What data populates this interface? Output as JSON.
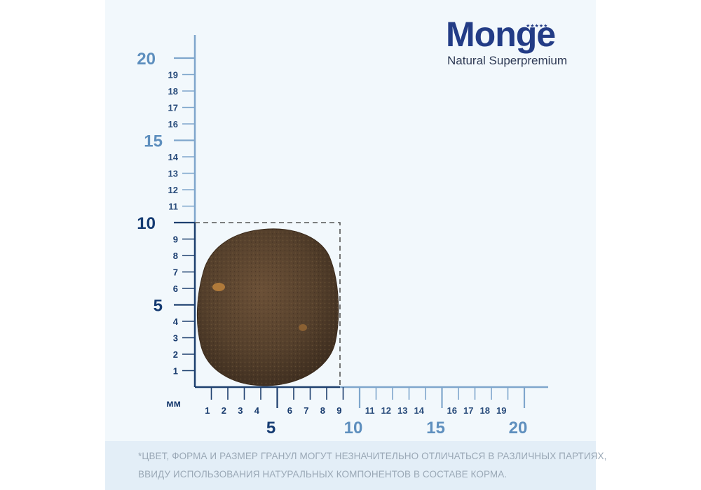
{
  "logo": {
    "word": "Monge",
    "tagline": "Natural Superpremium",
    "stars": "★★★★★"
  },
  "ruler": {
    "unit": "мм",
    "y_small_upper": [
      "11",
      "12",
      "13",
      "14",
      "16",
      "17",
      "18",
      "19"
    ],
    "y_small_lower": [
      "1",
      "2",
      "3",
      "4",
      "6",
      "7",
      "8",
      "9"
    ],
    "y_big": [
      "5",
      "10",
      "15",
      "20"
    ],
    "x_small_lower": [
      "1",
      "2",
      "3",
      "4",
      "6",
      "7",
      "8",
      "9"
    ],
    "x_small_upper": [
      "11",
      "12",
      "13",
      "14",
      "16",
      "17",
      "18",
      "19"
    ],
    "x_big": [
      "5",
      "10",
      "15",
      "20"
    ]
  },
  "kibble": {
    "color": "#5a4430",
    "box_size_mm": 10
  },
  "footer": {
    "line1": "*ЦВЕТ, ФОРМА И РАЗМЕР ГРАНУЛ МОГУТ НЕЗНАЧИТЕЛЬНО ОТЛИЧАТЬСЯ В РАЗЛИЧНЫХ ПАРТИЯХ,",
    "line2": "ВВИДУ ИСПОЛЬЗОВАНИЯ НАТУРАЛЬНЫХ КОМПОНЕНТОВ В СОСТАВЕ КОРМА."
  },
  "colors": {
    "axis_dark": "#1d3f6e",
    "axis_light": "#7fa6cc",
    "brand": "#233c86"
  }
}
